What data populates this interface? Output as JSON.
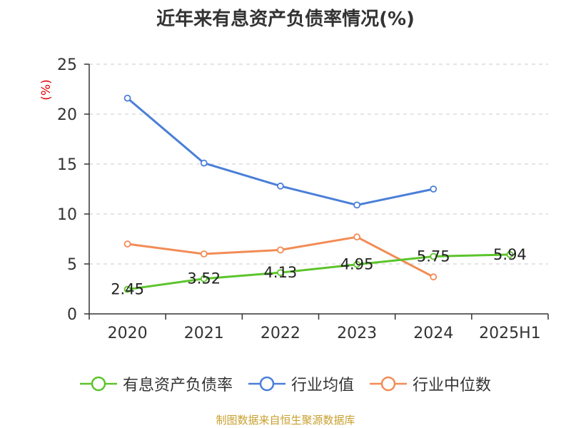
{
  "chart_data": {
    "type": "line",
    "title": "近年来有息资产负债率情况(%)",
    "ylabel": "(%)",
    "categories": [
      "2020",
      "2021",
      "2022",
      "2023",
      "2024",
      "2025H1"
    ],
    "yticks": [
      "0",
      "5",
      "10",
      "15",
      "20",
      "25"
    ],
    "ylim": [
      0,
      25
    ],
    "grid": true,
    "legend_position": "bottom",
    "series": [
      {
        "name": "有息资产负债率",
        "color": "#5cc42b",
        "values": [
          2.45,
          3.52,
          4.13,
          4.95,
          5.75,
          5.94
        ],
        "value_labels": [
          "2.45",
          "3.52",
          "4.13",
          "4.95",
          "5.75",
          "5.94"
        ]
      },
      {
        "name": "行业均值",
        "color": "#4a7fd8",
        "values": [
          21.6,
          15.1,
          12.8,
          10.9,
          12.5,
          null
        ]
      },
      {
        "name": "行业中位数",
        "color": "#f28c55",
        "values": [
          7.0,
          6.0,
          6.4,
          7.7,
          3.7,
          null
        ]
      }
    ]
  },
  "source": "制图数据来自恒生聚源数据库"
}
